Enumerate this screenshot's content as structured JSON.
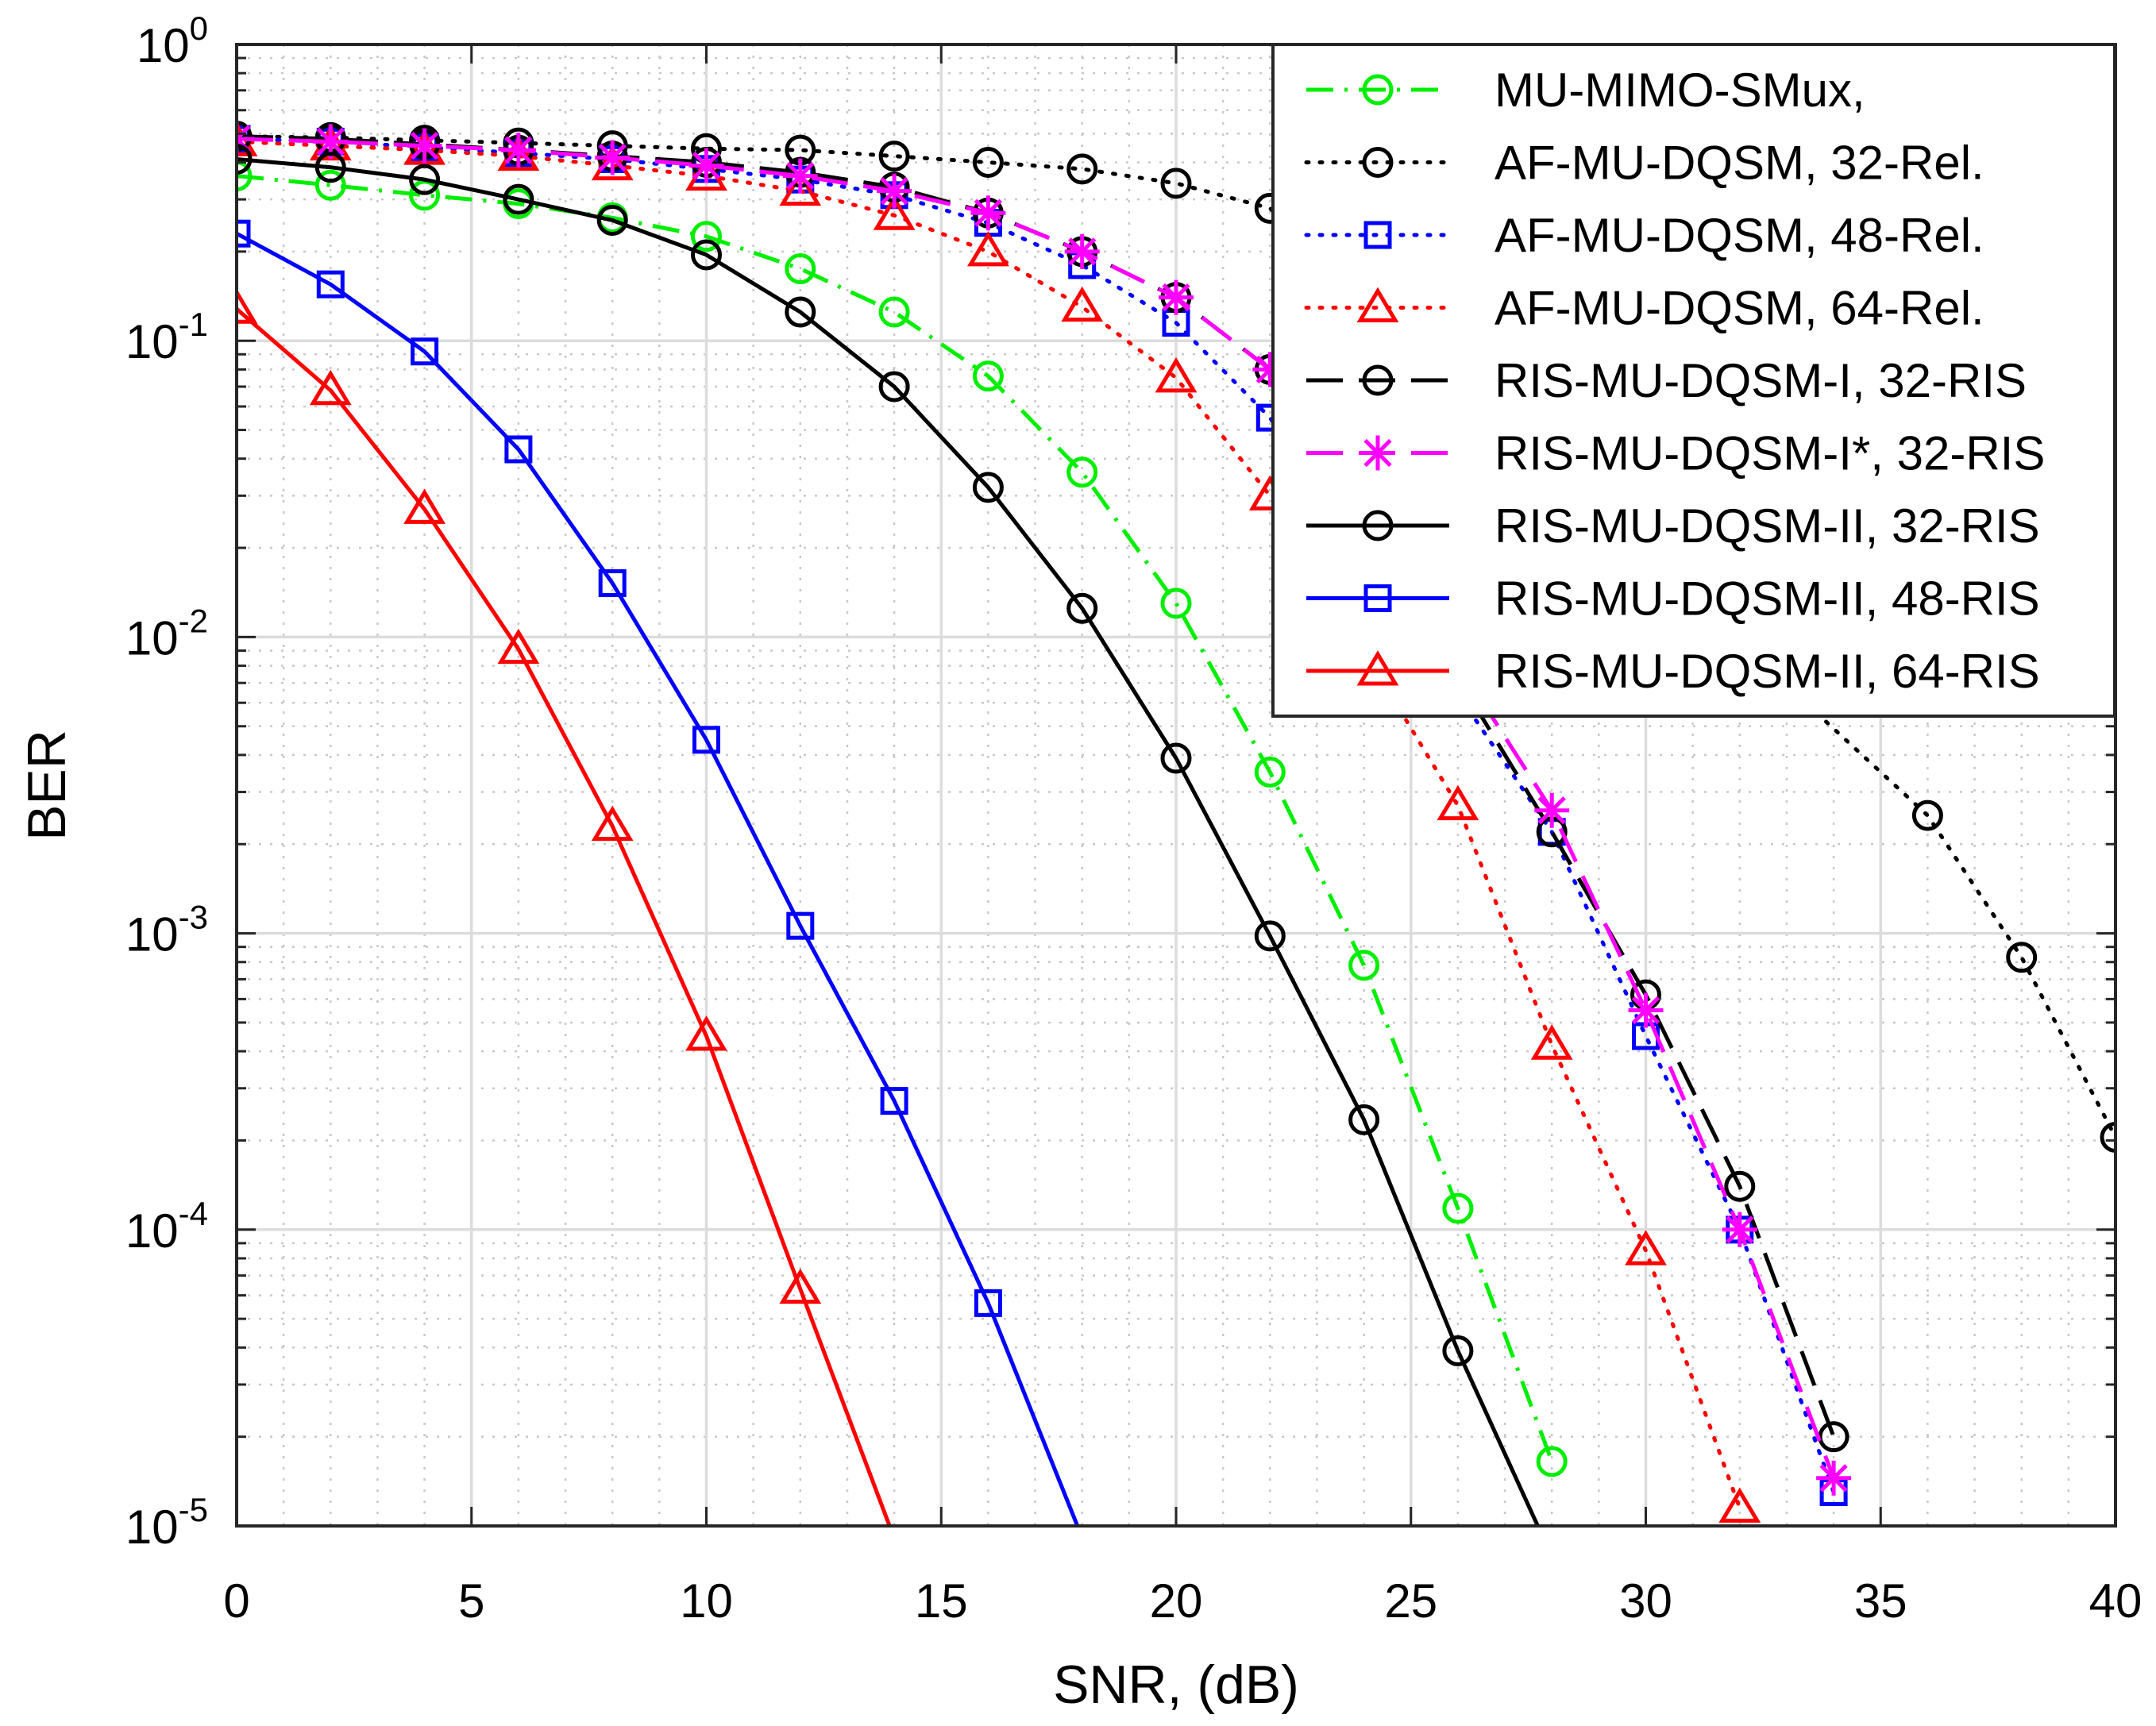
{
  "chart_data": {
    "type": "line",
    "xlabel": "SNR, (dB)",
    "ylabel": "BER",
    "xscale": "linear",
    "yscale": "log",
    "xlim": [
      0,
      40
    ],
    "ylim": [
      1e-05,
      1
    ],
    "grid": true,
    "legend_position": "top-right",
    "x_ticks": [
      {
        "value": 0,
        "label": "0"
      },
      {
        "value": 5,
        "label": "5"
      },
      {
        "value": 10,
        "label": "10"
      },
      {
        "value": 15,
        "label": "15"
      },
      {
        "value": 20,
        "label": "20"
      },
      {
        "value": 25,
        "label": "25"
      },
      {
        "value": 30,
        "label": "30"
      },
      {
        "value": 35,
        "label": "35"
      },
      {
        "value": 40,
        "label": "40"
      }
    ],
    "y_ticks": [
      {
        "value": 1,
        "base": "10",
        "exp": "0"
      },
      {
        "value": 0.1,
        "base": "10",
        "exp": "-1"
      },
      {
        "value": 0.01,
        "base": "10",
        "exp": "-2"
      },
      {
        "value": 0.001,
        "base": "10",
        "exp": "-3"
      },
      {
        "value": 0.0001,
        "base": "10",
        "exp": "-4"
      },
      {
        "value": 1e-05,
        "base": "10",
        "exp": "-5"
      }
    ],
    "series": [
      {
        "name": "MU-MIMO-SMux,",
        "color": "#00ee00",
        "dash": "dashdot",
        "marker": "circle",
        "x": [
          0,
          2,
          4,
          6,
          8,
          10,
          12,
          14,
          16,
          18,
          20,
          22,
          24,
          26,
          28
        ],
        "y": [
          0.36,
          0.335,
          0.31,
          0.29,
          0.26,
          0.225,
          0.175,
          0.125,
          0.076,
          0.036,
          0.013,
          0.0035,
          0.00078,
          0.000118,
          1.65e-05
        ]
      },
      {
        "name": "AF-MU-DQSM, 32-Rel.",
        "color": "#000000",
        "dash": "dotted",
        "marker": "circle",
        "x": [
          0,
          2,
          4,
          6,
          8,
          10,
          12,
          14,
          16,
          18,
          20,
          22,
          36,
          38,
          40
        ],
        "y": [
          0.49,
          0.485,
          0.475,
          0.465,
          0.455,
          0.445,
          0.44,
          0.42,
          0.4,
          0.38,
          0.34,
          0.28,
          0.0025,
          0.00083,
          0.000205
        ]
      },
      {
        "name": "AF-MU-DQSM, 48-Rel.",
        "color": "#0000ff",
        "dash": "dotted",
        "marker": "square",
        "x": [
          0,
          2,
          4,
          6,
          8,
          10,
          12,
          14,
          16,
          18,
          20,
          22,
          28,
          30,
          32,
          34
        ],
        "y": [
          0.48,
          0.47,
          0.45,
          0.43,
          0.41,
          0.38,
          0.35,
          0.31,
          0.25,
          0.18,
          0.115,
          0.055,
          0.0022,
          0.00045,
          0.0001,
          1.3e-05
        ]
      },
      {
        "name": "AF-MU-DQSM, 64-Rel.",
        "color": "#ff0000",
        "dash": "dotted",
        "marker": "triangle",
        "x": [
          0,
          2,
          4,
          6,
          8,
          10,
          12,
          14,
          16,
          18,
          20,
          22,
          26,
          28,
          30,
          32
        ],
        "y": [
          0.47,
          0.455,
          0.44,
          0.42,
          0.39,
          0.36,
          0.32,
          0.265,
          0.2,
          0.13,
          0.075,
          0.03,
          0.0027,
          0.00042,
          8.5e-05,
          1.15e-05
        ]
      },
      {
        "name": "RIS-MU-DQSM-I, 32-RIS",
        "color": "#000000",
        "dash": "dashed",
        "marker": "circle",
        "x": [
          0,
          2,
          4,
          6,
          8,
          10,
          12,
          14,
          16,
          18,
          20,
          22,
          28,
          30,
          32,
          34
        ],
        "y": [
          0.49,
          0.48,
          0.46,
          0.44,
          0.42,
          0.4,
          0.37,
          0.33,
          0.27,
          0.2,
          0.14,
          0.08,
          0.0022,
          0.00062,
          0.00014,
          2e-05
        ]
      },
      {
        "name": "RIS-MU-DQSM-I*, 32-RIS",
        "color": "#ff00ff",
        "dash": "dashed",
        "marker": "asterisk",
        "x": [
          0,
          2,
          4,
          6,
          8,
          10,
          12,
          14,
          16,
          18,
          20,
          22,
          28,
          30,
          32,
          34
        ],
        "y": [
          0.48,
          0.47,
          0.455,
          0.44,
          0.415,
          0.39,
          0.36,
          0.32,
          0.27,
          0.2,
          0.14,
          0.08,
          0.0026,
          0.00055,
          0.0001,
          1.45e-05
        ]
      },
      {
        "name": "RIS-MU-DQSM-II, 32-RIS",
        "color": "#000000",
        "dash": "solid",
        "marker": "circle",
        "x": [
          0,
          2,
          4,
          6,
          8,
          10,
          12,
          14,
          16,
          18,
          20,
          22,
          24,
          26,
          27.7
        ],
        "y": [
          0.41,
          0.385,
          0.35,
          0.3,
          0.255,
          0.195,
          0.125,
          0.07,
          0.032,
          0.0125,
          0.0039,
          0.00098,
          0.000235,
          3.9e-05,
          1e-05
        ],
        "marker_count": 14
      },
      {
        "name": "RIS-MU-DQSM-II, 48-RIS",
        "color": "#0000ff",
        "dash": "solid",
        "marker": "square",
        "x": [
          0,
          2,
          4,
          6,
          8,
          10,
          12,
          14,
          16,
          17.9
        ],
        "y": [
          0.23,
          0.155,
          0.092,
          0.043,
          0.0152,
          0.0045,
          0.00106,
          0.000272,
          5.65e-05,
          1e-05
        ],
        "marker_count": 9
      },
      {
        "name": "RIS-MU-DQSM-II, 64-RIS",
        "color": "#ff0000",
        "dash": "solid",
        "marker": "triangle",
        "x": [
          0,
          2,
          4,
          6,
          8,
          10,
          12,
          13.9
        ],
        "y": [
          0.128,
          0.068,
          0.027,
          0.0091,
          0.0023,
          0.00045,
          6.3e-05,
          1e-05
        ],
        "marker_count": 7
      }
    ]
  }
}
